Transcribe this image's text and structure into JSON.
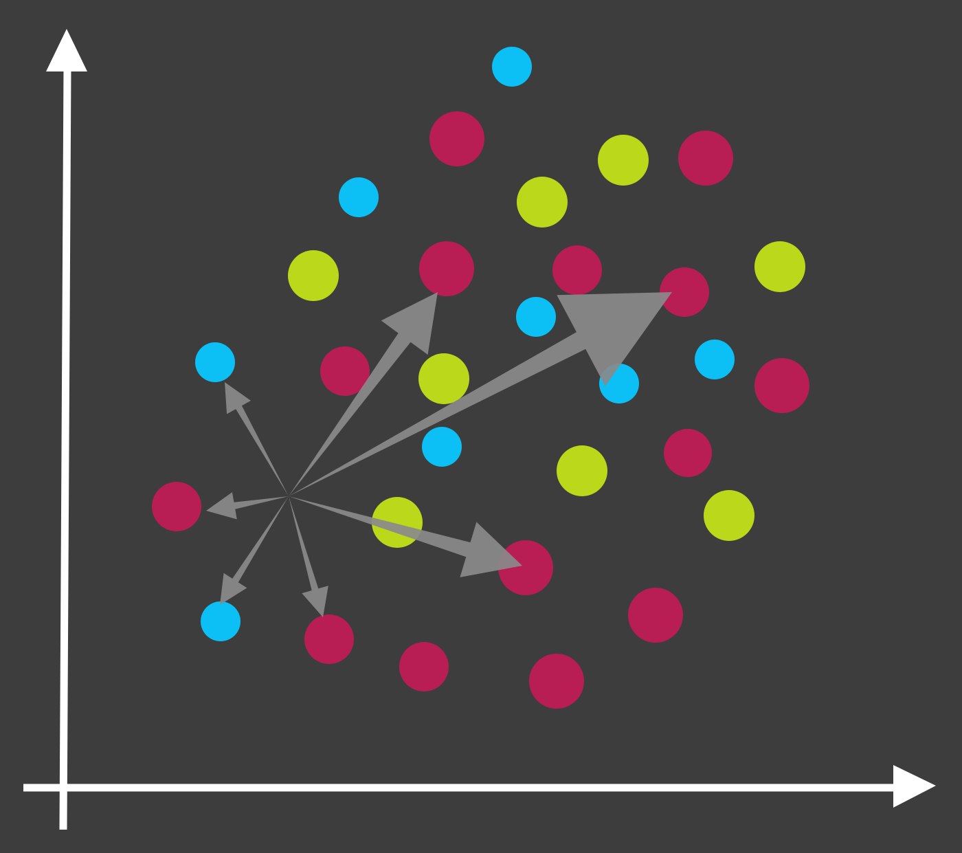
{
  "colors": {
    "background": "#3d3d3d",
    "axis": "#ffffff",
    "arrow": "#8a8a8a",
    "magenta": "#b81e53",
    "blue": "#0cc0f5",
    "lime": "#bbd91a"
  },
  "legend_text": [],
  "points": [
    {
      "cls": "blue"
    },
    {
      "cls": "magenta"
    },
    {
      "cls": "lime"
    },
    {
      "cls": "magenta"
    },
    {
      "cls": "blue"
    },
    {
      "cls": "lime"
    },
    {
      "cls": "lime"
    },
    {
      "cls": "magenta"
    },
    {
      "cls": "magenta"
    },
    {
      "cls": "magenta"
    },
    {
      "cls": "lime"
    },
    {
      "cls": "blue"
    },
    {
      "cls": "blue"
    },
    {
      "cls": "magenta"
    },
    {
      "cls": "lime"
    },
    {
      "cls": "blue"
    },
    {
      "cls": "magenta"
    },
    {
      "cls": "blue"
    },
    {
      "cls": "blue"
    },
    {
      "cls": "magenta"
    },
    {
      "cls": "lime"
    },
    {
      "cls": "lime"
    },
    {
      "cls": "magenta"
    },
    {
      "cls": "lime"
    },
    {
      "cls": "magenta"
    },
    {
      "cls": "magenta"
    },
    {
      "cls": "blue"
    },
    {
      "cls": "magenta"
    },
    {
      "cls": "magenta"
    },
    {
      "cls": "magenta"
    }
  ],
  "arrows": [
    {
      "target": "blue-left-upper",
      "weight": "small"
    },
    {
      "target": "magenta-left",
      "weight": "small"
    },
    {
      "target": "blue-left-lower",
      "weight": "small"
    },
    {
      "target": "magenta-bottom",
      "weight": "small"
    },
    {
      "target": "magenta-lower-middle",
      "weight": "medium"
    },
    {
      "target": "magenta-center",
      "weight": "medium"
    },
    {
      "target": "magenta-right",
      "weight": "large"
    }
  ]
}
